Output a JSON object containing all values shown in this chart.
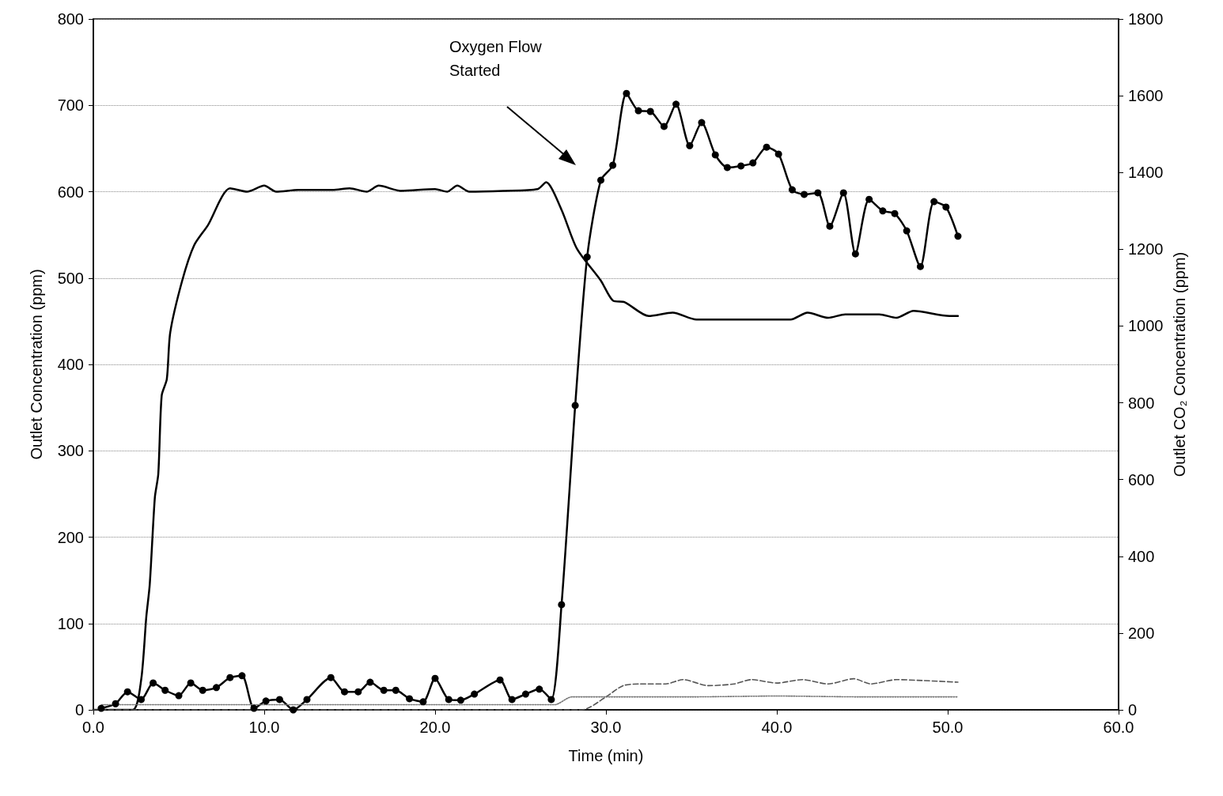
{
  "chart_data": {
    "type": "line",
    "xlabel": "Time (min)",
    "ylabel": "Outlet Concentration (ppm)",
    "y2label": "Outlet CO₂ Concentration (ppm)",
    "xlim": [
      0,
      60
    ],
    "xticks": [
      {
        "value": 0,
        "label": "0.0"
      },
      {
        "value": 10,
        "label": "10.0"
      },
      {
        "value": 20,
        "label": "20.0"
      },
      {
        "value": 30,
        "label": "30.0"
      },
      {
        "value": 40,
        "label": "40.0"
      },
      {
        "value": 50,
        "label": "50.0"
      },
      {
        "value": 60,
        "label": "60.0"
      }
    ],
    "ylim": [
      0,
      800
    ],
    "yticks": [
      0,
      100,
      200,
      300,
      400,
      500,
      600,
      700,
      800
    ],
    "y2lim": [
      0,
      1800
    ],
    "y2ticks": [
      0,
      200,
      400,
      600,
      800,
      1000,
      1200,
      1400,
      1600,
      1800
    ],
    "grid": "y",
    "annotations": [
      "Oxygen Flow Started"
    ],
    "series": [
      {
        "color": "#000000",
        "line_style": "solid",
        "marker": "none",
        "x": [
          0,
          2.3,
          2.8,
          3.1,
          3.3,
          3.6,
          3.8,
          4.0,
          4.3,
          4.5,
          5.2,
          5.9,
          6.7,
          8.0,
          9.0,
          10.0,
          10.7,
          12.0,
          14.0,
          15.0,
          16.0,
          16.7,
          18.0,
          20.0,
          20.7,
          21.3,
          22.0,
          24.0,
          26.0,
          26.5,
          27.4,
          28.3,
          29.7,
          30.4,
          31.1,
          32.5,
          33.9,
          35.3,
          38.0,
          40.0,
          40.8,
          41.8,
          43.0,
          44.0,
          46.0,
          47.0,
          48.0,
          50.1,
          50.6
        ],
        "values": [
          0,
          0,
          35,
          108,
          145,
          246,
          273,
          364,
          383,
          437,
          497,
          538,
          561,
          604,
          600,
          607,
          600,
          602,
          602,
          604,
          600,
          607,
          601,
          603,
          600,
          607,
          600,
          601,
          603,
          611,
          579,
          534,
          497,
          474,
          472,
          456,
          460,
          452,
          452,
          452,
          452,
          460,
          454,
          458,
          458,
          454,
          462,
          456,
          456
        ]
      },
      {
        "color": "#000000",
        "line_style": "solid",
        "marker": "circle",
        "axis": "y2",
        "x": [
          0.46,
          1.3,
          2.0,
          2.8,
          3.5,
          4.2,
          5.0,
          5.7,
          6.4,
          7.2,
          8.0,
          8.7,
          9.4,
          10.1,
          10.9,
          11.7,
          12.5,
          13.9,
          14.7,
          15.5,
          16.2,
          17.0,
          17.7,
          18.5,
          19.3,
          20.0,
          20.8,
          21.5,
          22.3,
          23.8,
          24.5,
          25.3,
          26.1,
          26.8,
          27.4,
          28.2,
          28.9,
          29.7,
          30.4,
          31.2,
          31.9,
          32.6,
          33.4,
          34.1,
          34.9,
          35.6,
          36.4,
          37.1,
          37.9,
          38.6,
          39.4,
          40.1,
          40.9,
          41.6,
          42.4,
          43.1,
          43.9,
          44.6,
          45.4,
          46.2,
          46.9,
          47.6,
          48.4,
          49.2,
          49.9,
          50.6
        ],
        "values": [
          4,
          16,
          47,
          27,
          70,
          51,
          37,
          70,
          51,
          58,
          84,
          89,
          4,
          23,
          27,
          0,
          27,
          84,
          47,
          47,
          72,
          51,
          51,
          29,
          21,
          82,
          27,
          25,
          41,
          78,
          27,
          41,
          54,
          27,
          274,
          793,
          1180,
          1380,
          1419,
          1606,
          1561,
          1559,
          1520,
          1578,
          1470,
          1530,
          1446,
          1413,
          1417,
          1425,
          1466,
          1448,
          1355,
          1343,
          1347,
          1260,
          1347,
          1188,
          1330,
          1300,
          1293,
          1248,
          1155,
          1324,
          1310,
          1234
        ]
      },
      {
        "color": "#555555",
        "line_style": "dashed",
        "marker": "none",
        "x": [
          0,
          28.6,
          30.0,
          31.0,
          32.0,
          33.5,
          34.5,
          36.0,
          37.5,
          38.5,
          40.0,
          41.5,
          43.0,
          44.5,
          45.5,
          47.0,
          48.5,
          50.6
        ],
        "values": [
          0,
          0,
          15,
          28,
          30,
          30,
          35,
          28,
          30,
          35,
          31,
          35,
          30,
          36,
          30,
          35,
          34,
          32
        ]
      },
      {
        "color": "#777777",
        "line_style": "dotted",
        "marker": "none",
        "x": [
          0.5,
          27.0,
          28.0,
          35.0,
          40.0,
          45.0,
          50.6
        ],
        "values": [
          6,
          6,
          15,
          15,
          16,
          15,
          15
        ]
      }
    ]
  }
}
